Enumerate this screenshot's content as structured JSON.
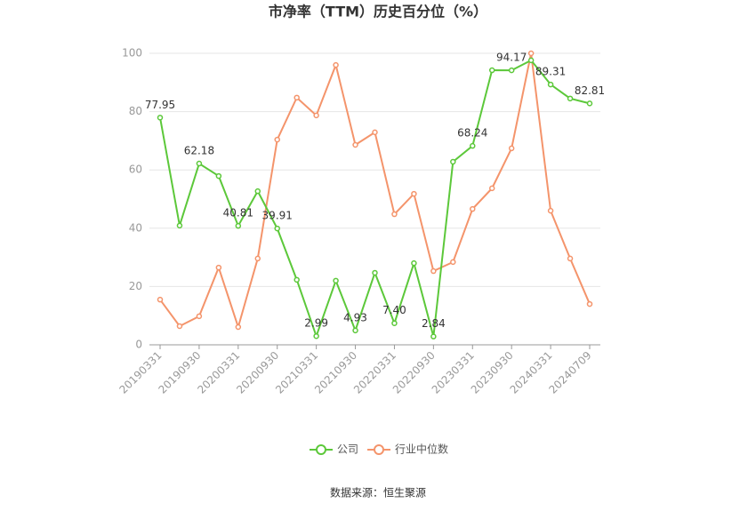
{
  "chart_data": {
    "type": "line",
    "title": "市净率（TTM）历史百分位（%）",
    "source": "数据来源：恒生聚源",
    "categories": [
      "20190331",
      null,
      "20190930",
      null,
      "20200331",
      null,
      "20200930",
      null,
      "20210331",
      null,
      "20210930",
      null,
      "20220331",
      null,
      "20220930",
      null,
      "20230331",
      null,
      "20230930",
      null,
      "20240331",
      null,
      "20240709"
    ],
    "series": [
      {
        "name": "公司",
        "color": "#5cc83a",
        "values": [
          77.95,
          40.9,
          62.18,
          57.9,
          40.81,
          52.7,
          39.91,
          22.3,
          2.99,
          22,
          4.93,
          24.7,
          7.4,
          28,
          2.84,
          62.8,
          68.24,
          94.2,
          94.17,
          97.6,
          89.31,
          84.5,
          82.81
        ],
        "value_labels": [
          "77.95",
          null,
          "62.18",
          null,
          "40.81",
          null,
          "39.91",
          null,
          "2.99",
          null,
          "4.93",
          null,
          "7.40",
          null,
          "2.84",
          null,
          "68.24",
          null,
          "94.17",
          null,
          "89.31",
          null,
          "82.81"
        ]
      },
      {
        "name": "行业中位数",
        "color": "#f4946b",
        "values": [
          15.5,
          6.4,
          9.8,
          26.5,
          6.1,
          29.6,
          70.4,
          84.8,
          78.7,
          96,
          68.6,
          72.9,
          44.8,
          51.8,
          25.3,
          28.4,
          46.6,
          53.7,
          67.4,
          100,
          46,
          29.6,
          14
        ]
      }
    ],
    "ylim": [
      0,
      100
    ],
    "yticks": [
      0,
      20,
      40,
      60,
      80,
      100
    ],
    "grid": true
  }
}
